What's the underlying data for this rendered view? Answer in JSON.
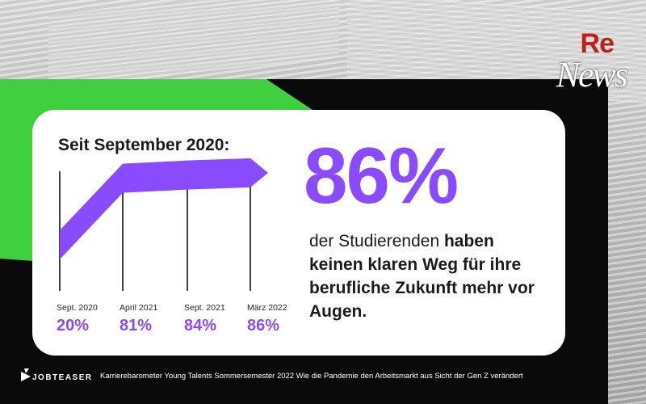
{
  "logo": {
    "re": "Re",
    "news": "News"
  },
  "card": {
    "title": "Seit September 2020:",
    "big_value": "86%",
    "description": {
      "part1": "der Studierenden ",
      "part2_bold": "haben keinen klaren Weg für ihre berufliche Zukunft mehr vor Augen."
    }
  },
  "chart_data": {
    "type": "line",
    "title": "Seit September 2020:",
    "categories": [
      "Sept. 2020",
      "April 2021",
      "Sept. 2021",
      "März 2022"
    ],
    "values": [
      20,
      81,
      84,
      86
    ],
    "value_labels": [
      "20%",
      "81%",
      "84%",
      "86%"
    ],
    "ylim": [
      0,
      100
    ],
    "grid": false,
    "color": "#8a4bff"
  },
  "footer": {
    "brand": "JOBTEASER",
    "caption": "Karrierebarometer Young Talents Sommersemester 2022 Wie die Pandemie den Arbeitsmarkt aus Sicht der Gen Z verändert"
  },
  "colors": {
    "accent": "#8a4bff",
    "green": "#3fcf3f",
    "panel": "#0a0a0a",
    "logo_red": "#c0201b"
  }
}
